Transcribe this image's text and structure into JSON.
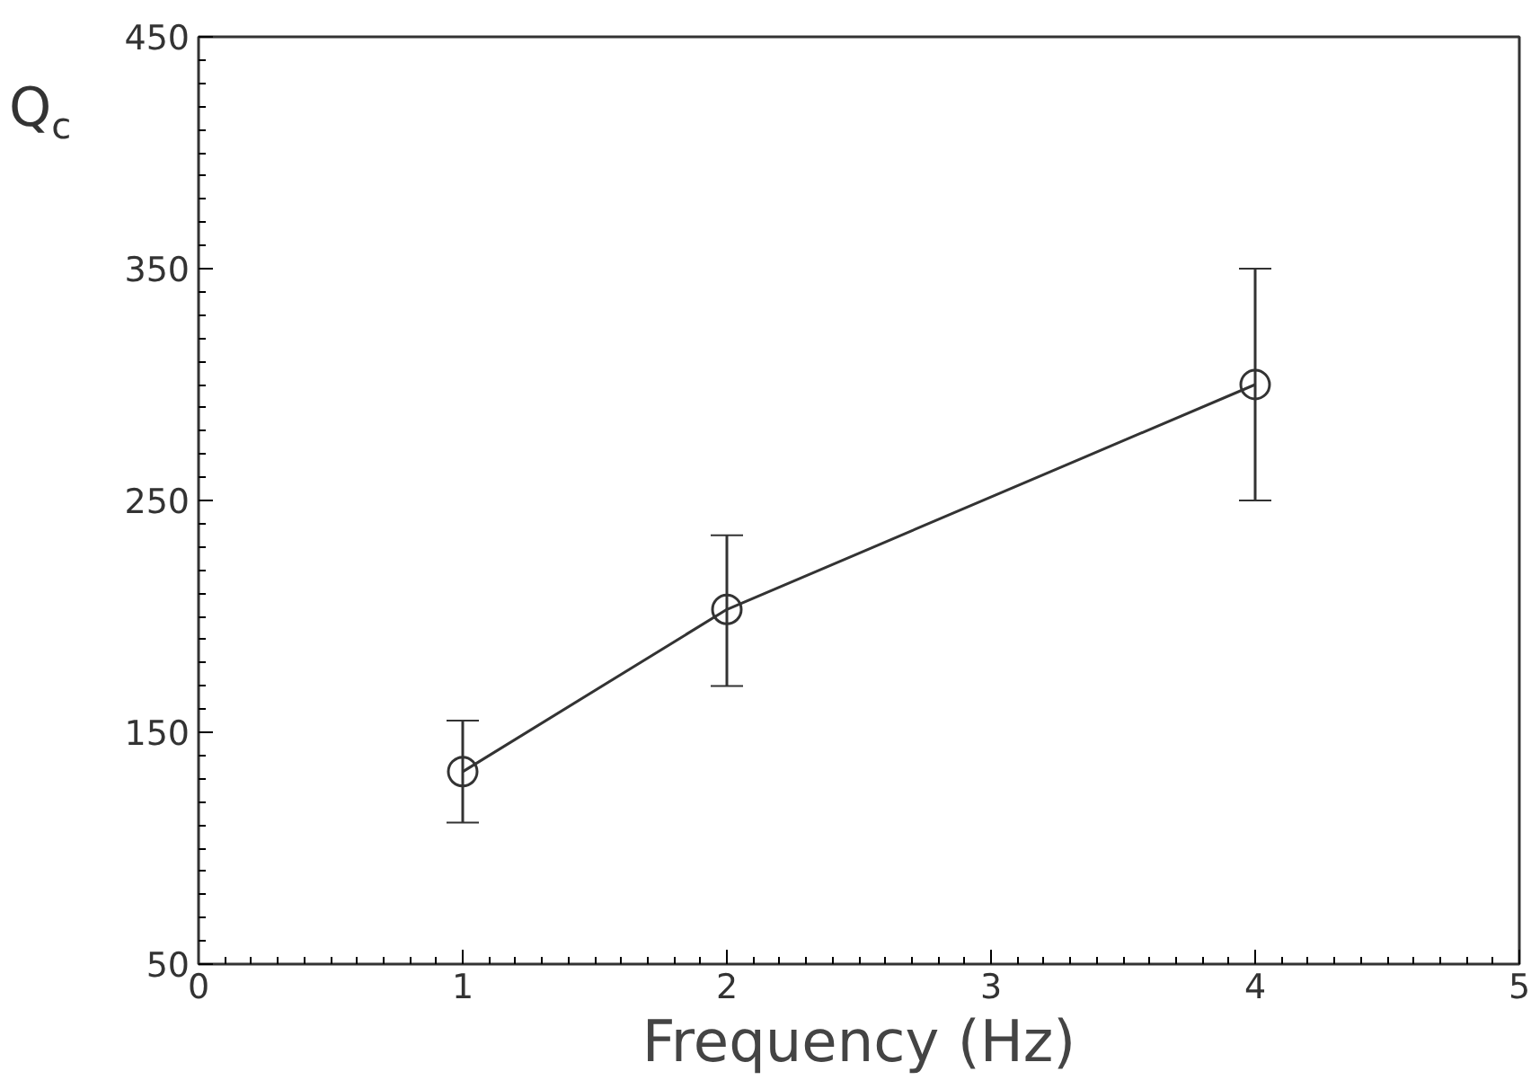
{
  "chart_data": {
    "type": "line",
    "xlabel": "Frequency (Hz)",
    "ylabel": "Q$_{c}$",
    "x": [
      1,
      2,
      4
    ],
    "values": [
      133,
      203,
      300
    ],
    "errors": [
      [
        111,
        155
      ],
      [
        170,
        235
      ],
      [
        250,
        350
      ]
    ],
    "color": "#333333",
    "marker": "circle",
    "line_style": "solid",
    "xlim": [
      0,
      5
    ],
    "xticks": [
      0,
      1,
      2,
      3,
      4,
      5
    ],
    "ylim": [
      50,
      450
    ],
    "yticks": [
      50,
      150,
      250,
      350,
      450
    ],
    "grid": false
  }
}
